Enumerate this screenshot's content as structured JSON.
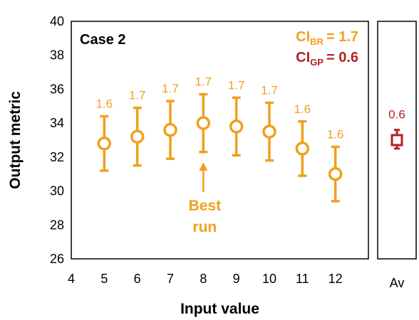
{
  "chart_data": {
    "type": "scatter",
    "case_label": "Case 2",
    "xlabel": "Input value",
    "ylabel": "Output metric",
    "xlim": [
      4,
      13
    ],
    "ylim": [
      26,
      40
    ],
    "x_ticks": [
      4,
      5,
      6,
      7,
      8,
      9,
      10,
      11,
      12
    ],
    "y_ticks": [
      26,
      28,
      30,
      32,
      34,
      36,
      38,
      40
    ],
    "grid": false,
    "series": [
      {
        "color": "#F0A01E",
        "points": [
          {
            "x": 5,
            "y": 32.8,
            "lower": 31.2,
            "upper": 34.4,
            "label": "1.6"
          },
          {
            "x": 6,
            "y": 33.2,
            "lower": 31.5,
            "upper": 34.9,
            "label": "1.7"
          },
          {
            "x": 7,
            "y": 33.6,
            "lower": 31.9,
            "upper": 35.3,
            "label": "1.7"
          },
          {
            "x": 8,
            "y": 34.0,
            "lower": 32.3,
            "upper": 35.7,
            "label": "1.7"
          },
          {
            "x": 9,
            "y": 33.8,
            "lower": 32.1,
            "upper": 35.5,
            "label": "1.7"
          },
          {
            "x": 10,
            "y": 33.5,
            "lower": 31.8,
            "upper": 35.2,
            "label": "1.7"
          },
          {
            "x": 11,
            "y": 32.5,
            "lower": 30.9,
            "upper": 34.1,
            "label": "1.6"
          },
          {
            "x": 12,
            "y": 31.0,
            "lower": 29.4,
            "upper": 32.6,
            "label": "1.6"
          }
        ]
      }
    ],
    "average_panel": {
      "tick_label": "Av",
      "color": "#B22222",
      "y": 33.0,
      "lower": 32.5,
      "upper": 33.6,
      "label": "0.6"
    },
    "legend": [
      {
        "main": "CI",
        "sub": "BR",
        "value": "= 1.7",
        "color": "#F0A01E"
      },
      {
        "main": "CI",
        "sub": "GP",
        "value": "= 0.6",
        "color": "#B22222"
      }
    ],
    "annotation": {
      "lines": [
        "Best",
        "run"
      ],
      "points_to_x": 8,
      "color": "#F0A01E"
    }
  }
}
